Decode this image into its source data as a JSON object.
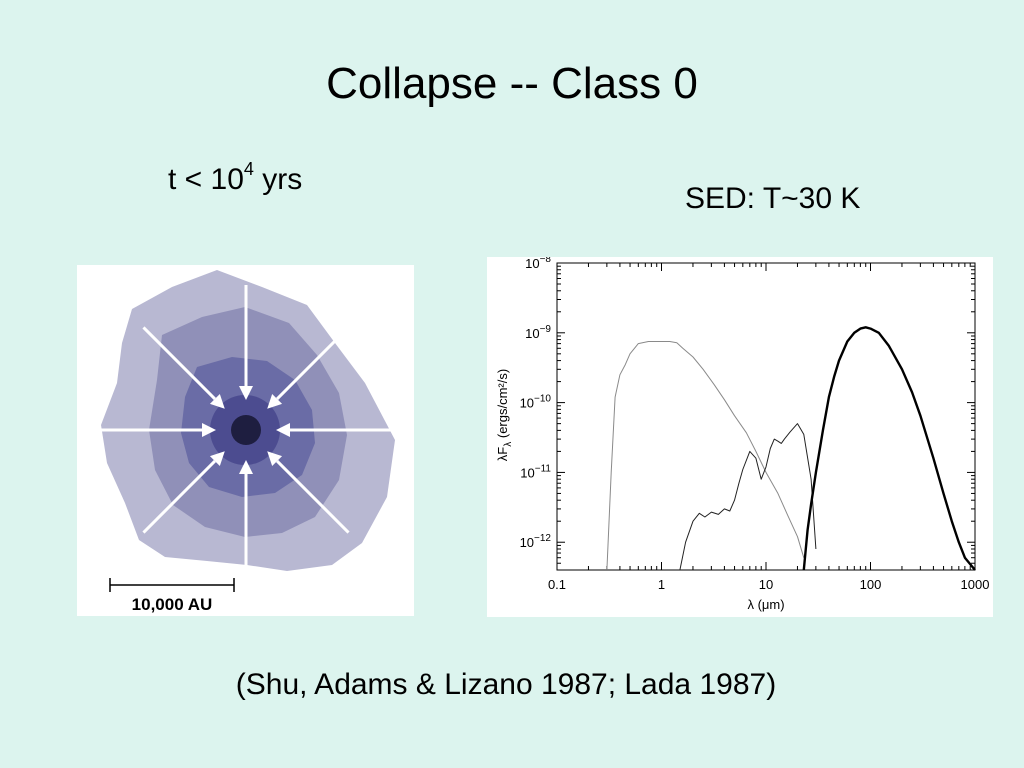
{
  "slide": {
    "title": "Collapse -- Class 0",
    "time_prefix": "t < 10",
    "time_exponent": "4",
    "time_suffix": " yrs",
    "sed_label": "SED: T~30 K",
    "citation": "(Shu, Adams & Lizano 1987; Lada 1987)"
  },
  "collapse_figure": {
    "scale_bar_label": "10,000 AU",
    "colors": {
      "outer": "#b8b8d2",
      "middle": "#9090b8",
      "inner": "#6a6ca6",
      "core": "#4c4c90",
      "center": "#1e1e40",
      "arrows": "#ffffff"
    },
    "arrow_count": 8
  },
  "chart_data": {
    "type": "line",
    "title": "",
    "xlabel": "λ (μm)",
    "ylabel": "λF_λ (ergs/cm²/s)",
    "xscale": "log",
    "yscale": "log",
    "xlim": [
      0.1,
      1000
    ],
    "ylim": [
      4e-13,
      1e-08
    ],
    "xticks": [
      {
        "value": 0.1,
        "label": "0.1"
      },
      {
        "value": 1,
        "label": "1"
      },
      {
        "value": 10,
        "label": "10"
      },
      {
        "value": 100,
        "label": "100"
      },
      {
        "value": 1000,
        "label": "1000"
      }
    ],
    "yticks": [
      {
        "value": 1e-08,
        "base": "10",
        "exp": "−8"
      },
      {
        "value": 1e-09,
        "base": "10",
        "exp": "−9"
      },
      {
        "value": 1e-10,
        "base": "10",
        "exp": "−10"
      },
      {
        "value": 1e-11,
        "base": "10",
        "exp": "−11"
      },
      {
        "value": 1e-12,
        "base": "10",
        "exp": "−12"
      }
    ],
    "grid": false,
    "series": [
      {
        "style": "thin-gray",
        "x": [
          0.3,
          0.33,
          0.36,
          0.4,
          0.45,
          0.5,
          0.6,
          0.75,
          0.9,
          1.0,
          1.2,
          1.4,
          1.6,
          2.0,
          2.5,
          3.2,
          4.0,
          5.0,
          6.5,
          8.0,
          10,
          13,
          16,
          20,
          23
        ],
        "y": [
          4e-13,
          1e-11,
          1.2e-10,
          2.5e-10,
          3.5e-10,
          5e-10,
          7e-10,
          7.5e-10,
          7.5e-10,
          7.5e-10,
          7.5e-10,
          7.2e-10,
          6e-10,
          4.5e-10,
          3e-10,
          1.8e-10,
          1.1e-10,
          6.5e-11,
          3.7e-11,
          2e-11,
          1e-11,
          5e-12,
          2.5e-12,
          1.2e-12,
          6e-13
        ]
      },
      {
        "style": "thin-black",
        "x": [
          1.5,
          1.7,
          2.0,
          2.3,
          2.6,
          3.0,
          3.5,
          4.0,
          4.5,
          5.0,
          5.5,
          6.0,
          7.0,
          8.0,
          9.0,
          10,
          11,
          12,
          13,
          14,
          15,
          17,
          20,
          23,
          27,
          30
        ],
        "y": [
          4e-13,
          1e-12,
          2e-12,
          2.6e-12,
          2.3e-12,
          2.7e-12,
          2.5e-12,
          3e-12,
          2.8e-12,
          4e-12,
          7e-12,
          1.1e-11,
          2e-11,
          1.6e-11,
          8e-12,
          1.2e-11,
          2.2e-11,
          3e-11,
          2.8e-11,
          2.6e-11,
          3e-11,
          3.8e-11,
          5e-11,
          3.5e-11,
          8e-12,
          8e-13
        ]
      },
      {
        "style": "thick-black",
        "x": [
          23,
          25,
          27,
          30,
          35,
          40,
          45,
          50,
          60,
          70,
          80,
          90,
          100,
          120,
          150,
          200,
          250,
          300,
          400,
          500,
          600,
          700,
          800,
          1000
        ],
        "y": [
          4e-13,
          1.5e-12,
          3.5e-12,
          1e-11,
          4e-11,
          1.2e-10,
          2.4e-10,
          4e-10,
          7.5e-10,
          1e-09,
          1.15e-09,
          1.2e-09,
          1.15e-09,
          1e-09,
          6.5e-10,
          3e-10,
          1.4e-10,
          6.5e-11,
          1.6e-11,
          5e-12,
          2e-12,
          1e-12,
          6e-13,
          4e-13
        ]
      }
    ]
  }
}
